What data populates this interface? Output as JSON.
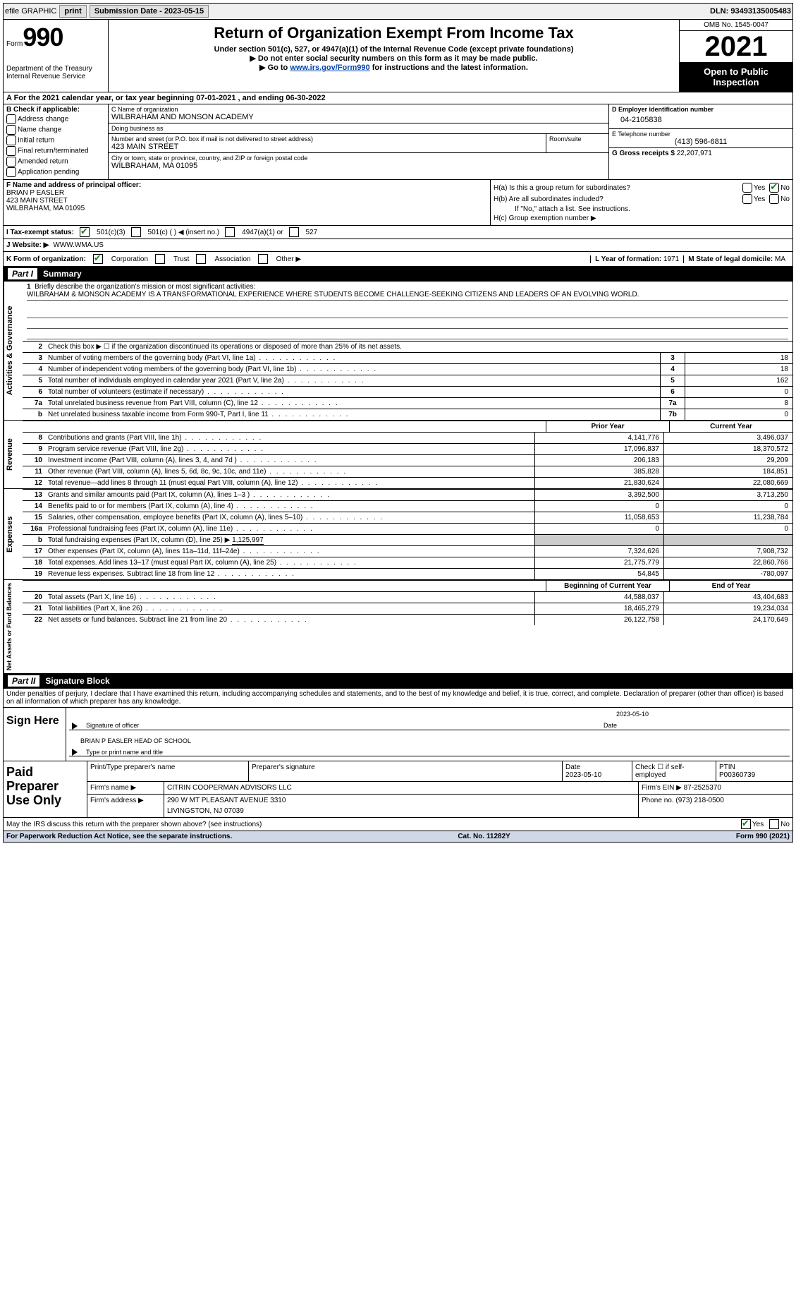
{
  "topbar": {
    "efile_label": "efile GRAPHIC",
    "print_btn": "print",
    "submission_label": "Submission Date - 2023-05-15",
    "dln_label": "DLN: 93493135005483"
  },
  "header": {
    "form_prefix": "Form",
    "form_number": "990",
    "dept": "Department of the Treasury",
    "irs": "Internal Revenue Service",
    "title": "Return of Organization Exempt From Income Tax",
    "subtitle": "Under section 501(c), 527, or 4947(a)(1) of the Internal Revenue Code (except private foundations)",
    "note1": "▶ Do not enter social security numbers on this form as it may be made public.",
    "note2_pre": "▶ Go to ",
    "note2_link": "www.irs.gov/Form990",
    "note2_post": " for instructions and the latest information.",
    "omb": "OMB No. 1545-0047",
    "year": "2021",
    "open_public": "Open to Public Inspection"
  },
  "row_a": "A For the 2021 calendar year, or tax year beginning 07-01-2021   , and ending 06-30-2022",
  "section_b": {
    "heading": "B Check if applicable:",
    "opts": [
      "Address change",
      "Name change",
      "Initial return",
      "Final return/terminated",
      "Amended return",
      "Application pending"
    ]
  },
  "section_c": {
    "name_lbl": "C Name of organization",
    "name": "WILBRAHAM AND MONSON ACADEMY",
    "dba_lbl": "Doing business as",
    "dba": "",
    "street_lbl": "Number and street (or P.O. box if mail is not delivered to street address)",
    "room_lbl": "Room/suite",
    "street": "423 MAIN STREET",
    "city_lbl": "City or town, state or province, country, and ZIP or foreign postal code",
    "city": "WILBRAHAM, MA  01095"
  },
  "section_d": {
    "ein_lbl": "D Employer identification number",
    "ein": "04-2105838",
    "tel_lbl": "E Telephone number",
    "tel": "(413) 596-6811",
    "gross_lbl": "G Gross receipts $",
    "gross": "22,207,971"
  },
  "section_f": {
    "lbl": "F Name and address of principal officer:",
    "name": "BRIAN P EASLER",
    "street": "423 MAIN STREET",
    "city": "WILBRAHAM, MA  01095"
  },
  "section_h": {
    "ha": "H(a)  Is this a group return for subordinates?",
    "hb": "H(b)  Are all subordinates included?",
    "hb_note": "If \"No,\" attach a list. See instructions.",
    "hc": "H(c)  Group exemption number ▶",
    "yes": "Yes",
    "no": "No"
  },
  "tax_status": {
    "lbl": "I   Tax-exempt status:",
    "o1": "501(c)(3)",
    "o2": "501(c) (  ) ◀ (insert no.)",
    "o3": "4947(a)(1) or",
    "o4": "527"
  },
  "website": {
    "lbl": "J   Website: ▶",
    "val": "WWW.WMA.US"
  },
  "k_org": {
    "lbl": "K Form of organization:",
    "o1": "Corporation",
    "o2": "Trust",
    "o3": "Association",
    "o4": "Other ▶",
    "l_lbl": "L Year of formation:",
    "l_val": "1971",
    "m_lbl": "M State of legal domicile:",
    "m_val": "MA"
  },
  "part1": {
    "tag": "Part I",
    "title": "Summary"
  },
  "mission": {
    "num": "1",
    "lbl": "Briefly describe the organization's mission or most significant activities:",
    "txt": "WILBRAHAM & MONSON ACADEMY IS A TRANSFORMATIONAL EXPERIENCE WHERE STUDENTS BECOME CHALLENGE-SEEKING CITIZENS AND LEADERS OF AN EVOLVING WORLD."
  },
  "line2": {
    "num": "2",
    "desc": "Check this box ▶ ☐ if the organization discontinued its operations or disposed of more than 25% of its net assets."
  },
  "gov_lines": [
    {
      "num": "3",
      "desc": "Number of voting members of the governing body (Part VI, line 1a)",
      "box": "3",
      "val": "18"
    },
    {
      "num": "4",
      "desc": "Number of independent voting members of the governing body (Part VI, line 1b)",
      "box": "4",
      "val": "18"
    },
    {
      "num": "5",
      "desc": "Total number of individuals employed in calendar year 2021 (Part V, line 2a)",
      "box": "5",
      "val": "162"
    },
    {
      "num": "6",
      "desc": "Total number of volunteers (estimate if necessary)",
      "box": "6",
      "val": "0"
    },
    {
      "num": "7a",
      "desc": "Total unrelated business revenue from Part VIII, column (C), line 12",
      "box": "7a",
      "val": "8"
    },
    {
      "num": "b",
      "desc": "Net unrelated business taxable income from Form 990-T, Part I, line 11",
      "box": "7b",
      "val": "0"
    }
  ],
  "col_headers": {
    "prior": "Prior Year",
    "current": "Current Year"
  },
  "revenue_lines": [
    {
      "num": "8",
      "desc": "Contributions and grants (Part VIII, line 1h)",
      "prior": "4,141,776",
      "curr": "3,496,037"
    },
    {
      "num": "9",
      "desc": "Program service revenue (Part VIII, line 2g)",
      "prior": "17,096,837",
      "curr": "18,370,572"
    },
    {
      "num": "10",
      "desc": "Investment income (Part VIII, column (A), lines 3, 4, and 7d )",
      "prior": "206,183",
      "curr": "29,209"
    },
    {
      "num": "11",
      "desc": "Other revenue (Part VIII, column (A), lines 5, 6d, 8c, 9c, 10c, and 11e)",
      "prior": "385,828",
      "curr": "184,851"
    },
    {
      "num": "12",
      "desc": "Total revenue—add lines 8 through 11 (must equal Part VIII, column (A), line 12)",
      "prior": "21,830,624",
      "curr": "22,080,669"
    }
  ],
  "expense_lines": [
    {
      "num": "13",
      "desc": "Grants and similar amounts paid (Part IX, column (A), lines 1–3 )",
      "prior": "3,392,500",
      "curr": "3,713,250"
    },
    {
      "num": "14",
      "desc": "Benefits paid to or for members (Part IX, column (A), line 4)",
      "prior": "0",
      "curr": "0"
    },
    {
      "num": "15",
      "desc": "Salaries, other compensation, employee benefits (Part IX, column (A), lines 5–10)",
      "prior": "11,058,653",
      "curr": "11,238,784"
    },
    {
      "num": "16a",
      "desc": "Professional fundraising fees (Part IX, column (A), line 11e)",
      "prior": "0",
      "curr": "0"
    }
  ],
  "line16b": {
    "num": "b",
    "desc_pre": "Total fundraising expenses (Part IX, column (D), line 25) ▶",
    "val": "1,125,997"
  },
  "expense_lines2": [
    {
      "num": "17",
      "desc": "Other expenses (Part IX, column (A), lines 11a–11d, 11f–24e)",
      "prior": "7,324,626",
      "curr": "7,908,732"
    },
    {
      "num": "18",
      "desc": "Total expenses. Add lines 13–17 (must equal Part IX, column (A), line 25)",
      "prior": "21,775,779",
      "curr": "22,860,766"
    },
    {
      "num": "19",
      "desc": "Revenue less expenses. Subtract line 18 from line 12",
      "prior": "54,845",
      "curr": "-780,097"
    }
  ],
  "net_headers": {
    "begin": "Beginning of Current Year",
    "end": "End of Year"
  },
  "net_lines": [
    {
      "num": "20",
      "desc": "Total assets (Part X, line 16)",
      "prior": "44,588,037",
      "curr": "43,404,683"
    },
    {
      "num": "21",
      "desc": "Total liabilities (Part X, line 26)",
      "prior": "18,465,279",
      "curr": "19,234,034"
    },
    {
      "num": "22",
      "desc": "Net assets or fund balances. Subtract line 21 from line 20",
      "prior": "26,122,758",
      "curr": "24,170,649"
    }
  ],
  "side_labels": {
    "gov": "Activities & Governance",
    "rev": "Revenue",
    "exp": "Expenses",
    "net": "Net Assets or Fund Balances"
  },
  "part2": {
    "tag": "Part II",
    "title": "Signature Block"
  },
  "sig_intro": "Under penalties of perjury, I declare that I have examined this return, including accompanying schedules and statements, and to the best of my knowledge and belief, it is true, correct, and complete. Declaration of preparer (other than officer) is based on all information of which preparer has any knowledge.",
  "sign_here": {
    "lbl": "Sign Here",
    "sig_lbl": "Signature of officer",
    "date_lbl": "Date",
    "date": "2023-05-10",
    "name": "BRIAN P EASLER  HEAD OF SCHOOL",
    "name_lbl": "Type or print name and title"
  },
  "preparer": {
    "lbl": "Paid Preparer Use Only",
    "r1": {
      "c1_lbl": "Print/Type preparer's name",
      "c1": "",
      "c2_lbl": "Preparer's signature",
      "c2": "",
      "c3_lbl": "Date",
      "c3": "2023-05-10",
      "c4_lbl": "Check ☐ if self-employed",
      "c5_lbl": "PTIN",
      "c5": "P00360739"
    },
    "r2": {
      "lbl": "Firm's name    ▶",
      "val": "CITRIN COOPERMAN ADVISORS LLC",
      "ein_lbl": "Firm's EIN ▶",
      "ein": "87-2525370"
    },
    "r3": {
      "lbl": "Firm's address ▶",
      "val": "290 W MT PLEASANT AVENUE 3310",
      "phone_lbl": "Phone no.",
      "phone": "(973) 218-0500"
    },
    "r3b": "LIVINGSTON, NJ  07039"
  },
  "discuss": {
    "txt": "May the IRS discuss this return with the preparer shown above? (see instructions)",
    "yes": "Yes",
    "no": "No"
  },
  "footer": {
    "left": "For Paperwork Reduction Act Notice, see the separate instructions.",
    "mid": "Cat. No. 11282Y",
    "right": "Form 990 (2021)"
  }
}
